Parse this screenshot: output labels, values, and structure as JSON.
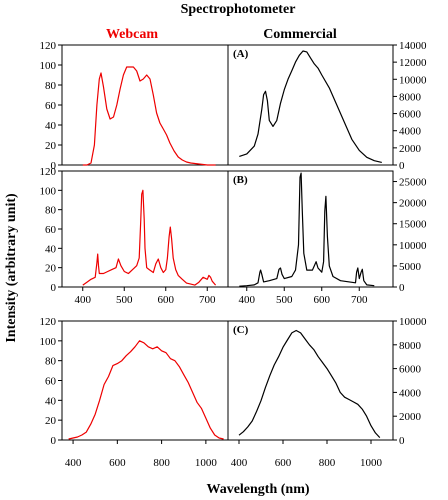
{
  "figure": {
    "title": "Spectrophotometer",
    "col_left_title": "Webcam",
    "col_right_title": "Commercial",
    "ylabel": "Intensity (arbitrary unit)",
    "xlabel": "Wavelength (nm)",
    "colors": {
      "webcam": "#ee0000",
      "commercial": "#000000"
    }
  },
  "chart_data": [
    {
      "type": "line",
      "row": 1,
      "side": "left",
      "label": "",
      "xlim": [
        350,
        750
      ],
      "ylim": [
        0,
        120
      ],
      "yticks": [
        0,
        20,
        40,
        60,
        80,
        100,
        120
      ],
      "xticks": [],
      "series": [
        {
          "color": "#ee0000",
          "x": [
            400,
            410,
            420,
            428,
            434,
            440,
            444,
            450,
            458,
            466,
            474,
            482,
            490,
            498,
            506,
            514,
            522,
            530,
            538,
            546,
            554,
            562,
            570,
            578,
            586,
            594,
            602,
            610,
            620,
            630,
            640,
            650,
            660,
            680,
            700,
            720
          ],
          "y": [
            0,
            0,
            2,
            20,
            60,
            86,
            92,
            78,
            56,
            46,
            48,
            60,
            76,
            90,
            98,
            98,
            98,
            94,
            84,
            86,
            90,
            86,
            70,
            52,
            42,
            36,
            30,
            22,
            14,
            8,
            5,
            3,
            2,
            1,
            0,
            0
          ]
        }
      ]
    },
    {
      "type": "line",
      "row": 1,
      "side": "right",
      "label": "(A)",
      "xlim": [
        350,
        790
      ],
      "ylim": [
        0,
        14000
      ],
      "yticks": [
        0,
        2000,
        4000,
        6000,
        8000,
        10000,
        12000,
        14000
      ],
      "xticks": [],
      "series": [
        {
          "color": "#000000",
          "x": [
            380,
            400,
            420,
            430,
            440,
            445,
            450,
            455,
            460,
            470,
            480,
            490,
            500,
            510,
            520,
            530,
            540,
            550,
            560,
            570,
            580,
            590,
            600,
            620,
            640,
            660,
            680,
            700,
            720,
            740,
            760
          ],
          "y": [
            1000,
            1300,
            2200,
            3600,
            6500,
            8200,
            8600,
            7500,
            5200,
            4500,
            5200,
            7200,
            8800,
            10000,
            11000,
            12000,
            12800,
            13300,
            13200,
            12500,
            11800,
            11300,
            10500,
            9000,
            7000,
            5000,
            3000,
            1700,
            900,
            500,
            300
          ]
        }
      ]
    },
    {
      "type": "line",
      "row": 2,
      "side": "left",
      "label": "",
      "xlim": [
        350,
        750
      ],
      "ylim": [
        0,
        120
      ],
      "yticks": [
        0,
        20,
        40,
        60,
        80,
        100,
        120
      ],
      "xticks": [
        400,
        500,
        600,
        700
      ],
      "series": [
        {
          "color": "#ee0000",
          "x": [
            400,
            410,
            420,
            430,
            434,
            436,
            438,
            440,
            450,
            460,
            470,
            480,
            486,
            492,
            500,
            510,
            520,
            530,
            536,
            540,
            542,
            545,
            548,
            550,
            554,
            560,
            570,
            576,
            582,
            588,
            594,
            600,
            604,
            608,
            611,
            614,
            618,
            624,
            630,
            640,
            650,
            660,
            670,
            680,
            690,
            700,
            704,
            708,
            712,
            720
          ],
          "y": [
            2,
            5,
            8,
            10,
            25,
            34,
            22,
            14,
            14,
            16,
            18,
            20,
            29,
            22,
            16,
            14,
            18,
            22,
            30,
            70,
            96,
            100,
            70,
            40,
            20,
            18,
            15,
            24,
            29,
            20,
            15,
            18,
            30,
            52,
            62,
            50,
            30,
            18,
            12,
            8,
            4,
            3,
            2,
            5,
            10,
            8,
            12,
            10,
            6,
            2
          ]
        }
      ]
    },
    {
      "type": "line",
      "row": 2,
      "side": "right",
      "label": "(B)",
      "xlim": [
        350,
        790
      ],
      "ylim": [
        0,
        27500
      ],
      "yticks": [
        0,
        5000,
        10000,
        15000,
        20000,
        25000
      ],
      "xticks": [
        400,
        500,
        600,
        700
      ],
      "series": [
        {
          "color": "#000000",
          "x": [
            380,
            400,
            420,
            430,
            435,
            437,
            440,
            445,
            460,
            480,
            486,
            490,
            494,
            500,
            520,
            530,
            538,
            542,
            545,
            548,
            552,
            560,
            575,
            580,
            585,
            590,
            600,
            605,
            608,
            611,
            615,
            620,
            630,
            650,
            690,
            693,
            696,
            700,
            705,
            708,
            712,
            720,
            740
          ],
          "y": [
            200,
            300,
            500,
            1000,
            3500,
            4000,
            3000,
            1200,
            1500,
            2000,
            4200,
            4500,
            3000,
            2000,
            2500,
            4000,
            10000,
            26000,
            27000,
            18000,
            8000,
            4000,
            4000,
            5000,
            6000,
            4500,
            3500,
            6000,
            18000,
            21500,
            12000,
            5000,
            2500,
            1500,
            1000,
            3500,
            4500,
            2000,
            3500,
            4200,
            1500,
            500,
            300
          ]
        }
      ]
    },
    {
      "type": "line",
      "row": 3,
      "side": "left",
      "label": "",
      "xlim": [
        350,
        1100
      ],
      "ylim": [
        0,
        120
      ],
      "yticks": [
        0,
        20,
        40,
        60,
        80,
        100,
        120
      ],
      "xticks": [
        400,
        600,
        800,
        1000
      ],
      "series": [
        {
          "color": "#ee0000",
          "x": [
            380,
            400,
            420,
            440,
            460,
            480,
            500,
            520,
            540,
            560,
            580,
            600,
            620,
            640,
            660,
            680,
            700,
            720,
            740,
            760,
            780,
            800,
            820,
            840,
            860,
            880,
            900,
            920,
            940,
            960,
            980,
            1000,
            1020,
            1040,
            1060,
            1080
          ],
          "y": [
            1,
            2,
            3,
            5,
            8,
            16,
            26,
            40,
            56,
            64,
            75,
            77,
            80,
            85,
            89,
            94,
            100,
            98,
            94,
            92,
            94,
            90,
            88,
            82,
            80,
            74,
            66,
            58,
            48,
            38,
            32,
            22,
            12,
            5,
            2,
            1
          ]
        }
      ]
    },
    {
      "type": "line",
      "row": 3,
      "side": "right",
      "label": "(C)",
      "xlim": [
        350,
        1100
      ],
      "ylim": [
        0,
        10000
      ],
      "yticks": [
        0,
        2000,
        4000,
        6000,
        8000,
        10000
      ],
      "xticks": [
        400,
        600,
        800,
        1000
      ],
      "series": [
        {
          "color": "#000000",
          "x": [
            400,
            420,
            440,
            460,
            480,
            500,
            520,
            540,
            560,
            580,
            600,
            620,
            640,
            660,
            680,
            700,
            720,
            740,
            760,
            780,
            800,
            820,
            840,
            860,
            880,
            900,
            920,
            940,
            960,
            980,
            1000,
            1020,
            1040
          ],
          "y": [
            400,
            700,
            1100,
            1600,
            2400,
            3300,
            4400,
            5400,
            6300,
            7000,
            7800,
            8400,
            9000,
            9200,
            9000,
            8500,
            8000,
            7600,
            7000,
            6500,
            6000,
            5400,
            4800,
            4000,
            3600,
            3400,
            3200,
            3000,
            2600,
            2000,
            1200,
            600,
            200
          ]
        }
      ]
    }
  ]
}
